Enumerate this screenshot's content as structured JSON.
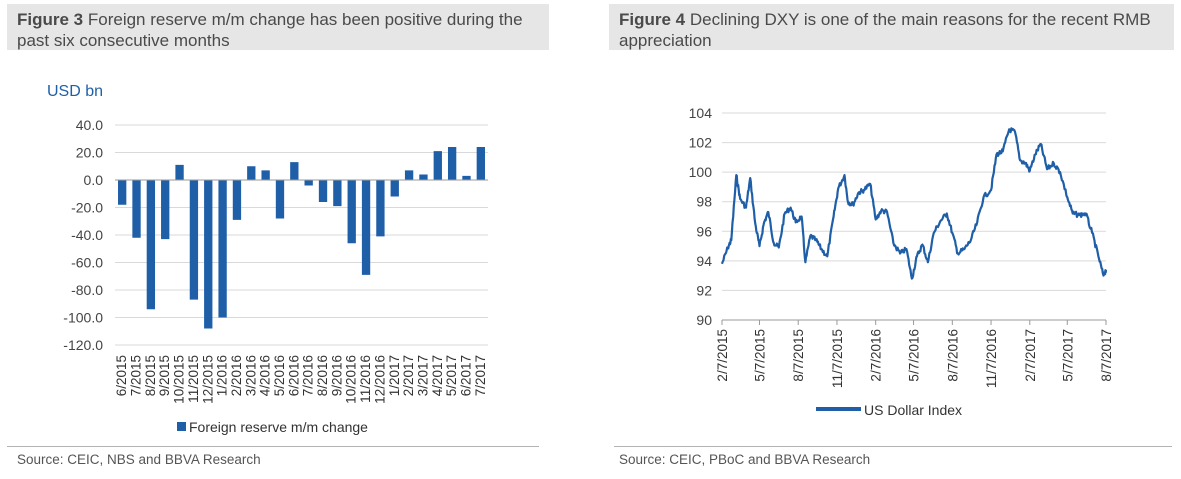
{
  "figures": [
    {
      "label": "Figure 3",
      "title": "Foreign reserve m/m change has been positive during the past six consecutive months",
      "source": "Source: CEIC, NBS and BBVA Research"
    },
    {
      "label": "Figure 4",
      "title": "Declining DXY is one of the main reasons for the recent RMB appreciation",
      "source": "Source: CEIC, PBoC and BBVA Research"
    }
  ],
  "colors": {
    "series": "#1f5fa8",
    "grid": "#d9d9d9",
    "title_bg": "#e6e6e6"
  },
  "chart_data": [
    {
      "type": "bar",
      "title": "",
      "ylabel": "USD bn",
      "xlabel": "",
      "ylim": [
        -120,
        40
      ],
      "yticks": [
        "40.0",
        "20.0",
        "0.0",
        "-20.0",
        "-40.0",
        "-60.0",
        "-80.0",
        "-100.0",
        "-120.0"
      ],
      "grid": true,
      "legend": "bottom",
      "categories": [
        "6/2015",
        "7/2015",
        "8/2015",
        "9/2015",
        "10/2015",
        "11/2015",
        "12/2015",
        "1/2016",
        "2/2016",
        "3/2016",
        "4/2016",
        "5/2016",
        "6/2016",
        "7/2016",
        "8/2016",
        "9/2016",
        "10/2016",
        "11/2016",
        "12/2016",
        "1/2017",
        "2/2017",
        "3/2017",
        "4/2017",
        "5/2017",
        "6/2017",
        "7/2017"
      ],
      "series": [
        {
          "name": "Foreign reserve m/m change",
          "values": [
            -18,
            -42,
            -94,
            -43,
            11,
            -87,
            -108,
            -100,
            -29,
            10,
            7,
            -28,
            13,
            -4,
            -16,
            -19,
            -46,
            -69,
            -41,
            -12,
            7,
            4,
            21,
            24,
            3,
            24
          ]
        }
      ]
    },
    {
      "type": "line",
      "title": "",
      "ylabel": "",
      "xlabel": "",
      "ylim": [
        90,
        104
      ],
      "yticks": [
        "104",
        "102",
        "100",
        "98",
        "96",
        "94",
        "92",
        "90"
      ],
      "xticks": [
        "2/7/2015",
        "5/7/2015",
        "8/7/2015",
        "11/7/2015",
        "2/7/2016",
        "5/7/2016",
        "8/7/2016",
        "11/7/2016",
        "2/7/2017",
        "5/7/2017",
        "8/7/2017"
      ],
      "grid": true,
      "legend": "bottom",
      "series": [
        {
          "name": "US Dollar Index",
          "x": [
            "2015-02-07",
            "2015-02-21",
            "2015-03-01",
            "2015-03-13",
            "2015-03-22",
            "2015-04-05",
            "2015-04-15",
            "2015-04-27",
            "2015-05-07",
            "2015-05-18",
            "2015-05-28",
            "2015-06-10",
            "2015-06-22",
            "2015-07-06",
            "2015-07-20",
            "2015-08-01",
            "2015-08-15",
            "2015-08-24",
            "2015-09-05",
            "2015-09-18",
            "2015-10-01",
            "2015-10-15",
            "2015-10-30",
            "2015-11-10",
            "2015-11-25",
            "2015-12-03",
            "2015-12-15",
            "2015-12-28",
            "2016-01-10",
            "2016-01-25",
            "2016-02-07",
            "2016-02-20",
            "2016-03-05",
            "2016-03-20",
            "2016-04-05",
            "2016-04-20",
            "2016-05-03",
            "2016-05-15",
            "2016-05-28",
            "2016-06-10",
            "2016-06-24",
            "2016-07-10",
            "2016-07-25",
            "2016-08-07",
            "2016-08-20",
            "2016-09-05",
            "2016-09-20",
            "2016-10-05",
            "2016-10-20",
            "2016-11-07",
            "2016-11-20",
            "2016-12-05",
            "2016-12-20",
            "2017-01-03",
            "2017-01-15",
            "2017-01-28",
            "2017-02-07",
            "2017-02-20",
            "2017-03-05",
            "2017-03-20",
            "2017-04-05",
            "2017-04-20",
            "2017-05-07",
            "2017-05-20",
            "2017-06-05",
            "2017-06-20",
            "2017-07-05",
            "2017-07-20",
            "2017-08-01",
            "2017-08-07"
          ],
          "values": [
            93.8,
            94.9,
            95.4,
            99.8,
            98.2,
            97.6,
            99.6,
            96.5,
            95.0,
            96.6,
            97.3,
            95.2,
            94.9,
            97.2,
            97.6,
            96.6,
            97.0,
            93.9,
            95.7,
            95.4,
            94.8,
            94.3,
            97.0,
            98.9,
            99.8,
            98.0,
            97.8,
            98.6,
            98.8,
            99.2,
            96.8,
            97.4,
            97.3,
            95.2,
            94.5,
            94.8,
            92.8,
            94.3,
            95.1,
            93.9,
            95.9,
            96.7,
            97.2,
            95.9,
            94.5,
            94.8,
            95.4,
            96.6,
            98.3,
            98.8,
            101.2,
            101.4,
            102.9,
            102.7,
            100.8,
            100.6,
            100.1,
            101.2,
            101.9,
            100.2,
            100.6,
            100.0,
            98.3,
            97.2,
            97.1,
            97.2,
            95.9,
            94.3,
            93.0,
            93.4
          ]
        }
      ]
    }
  ]
}
